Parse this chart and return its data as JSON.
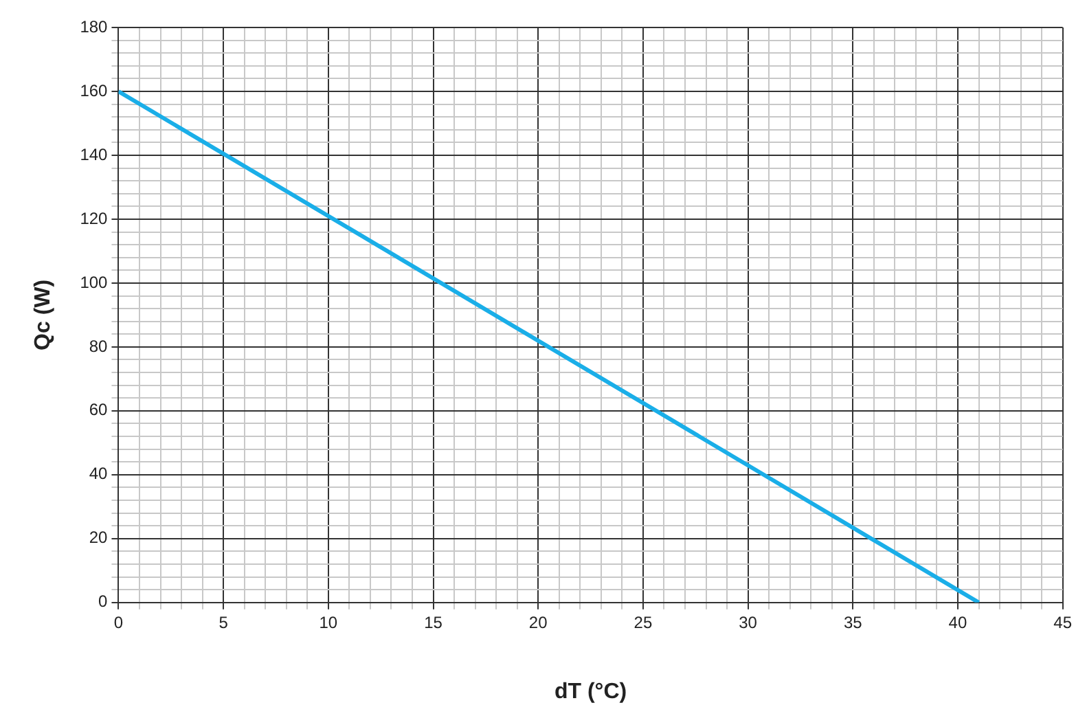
{
  "chart_data": {
    "type": "line",
    "xlabel": "dT (°C)",
    "ylabel": "Qc (W)",
    "x": [
      0,
      41
    ],
    "series": [
      {
        "color": "#1aaee8",
        "values": [
          160,
          0
        ]
      }
    ],
    "xlim": [
      0,
      45
    ],
    "ylim": [
      0,
      180
    ],
    "xticks": [
      0,
      {
        "value": 1,
        "label": null
      },
      {
        "value": 2,
        "label": null
      },
      {
        "value": 3,
        "label": null
      },
      {
        "value": 4,
        "label": null
      },
      5,
      {
        "value": 6,
        "label": null
      },
      {
        "value": 7,
        "label": null
      },
      {
        "value": 8,
        "label": null
      },
      {
        "value": 9,
        "label": null
      },
      10,
      {
        "value": 11,
        "label": null
      },
      {
        "value": 12,
        "label": null
      },
      {
        "value": 13,
        "label": null
      },
      {
        "value": 14,
        "label": null
      },
      15,
      {
        "value": 16,
        "label": null
      },
      {
        "value": 17,
        "label": null
      },
      {
        "value": 18,
        "label": null
      },
      {
        "value": 19,
        "label": null
      },
      20,
      {
        "value": 21,
        "label": null
      },
      {
        "value": 22,
        "label": null
      },
      {
        "value": 23,
        "label": null
      },
      {
        "value": 24,
        "label": null
      },
      25,
      {
        "value": 26,
        "label": null
      },
      {
        "value": 27,
        "label": null
      },
      {
        "value": 28,
        "label": null
      },
      {
        "value": 29,
        "label": null
      },
      30,
      {
        "value": 31,
        "label": null
      },
      {
        "value": 32,
        "label": null
      },
      {
        "value": 33,
        "label": null
      },
      {
        "value": 34,
        "label": null
      },
      35,
      {
        "value": 36,
        "label": null
      },
      {
        "value": 37,
        "label": null
      },
      {
        "value": 38,
        "label": null
      },
      {
        "value": 39,
        "label": null
      },
      40,
      {
        "value": 41,
        "label": null
      },
      {
        "value": 42,
        "label": null
      },
      {
        "value": 43,
        "label": null
      },
      {
        "value": 44,
        "label": null
      },
      45
    ],
    "yticks": [
      0,
      {
        "value": 4,
        "label": null
      },
      {
        "value": 8,
        "label": null
      },
      {
        "value": 12,
        "label": null
      },
      {
        "value": 16,
        "label": null
      },
      20,
      {
        "value": 24,
        "label": null
      },
      {
        "value": 28,
        "label": null
      },
      {
        "value": 32,
        "label": null
      },
      {
        "value": 36,
        "label": null
      },
      40,
      {
        "value": 44,
        "label": null
      },
      {
        "value": 48,
        "label": null
      },
      {
        "value": 52,
        "label": null
      },
      {
        "value": 56,
        "label": null
      },
      60,
      {
        "value": 64,
        "label": null
      },
      {
        "value": 68,
        "label": null
      },
      {
        "value": 72,
        "label": null
      },
      {
        "value": 76,
        "label": null
      },
      80,
      {
        "value": 84,
        "label": null
      },
      {
        "value": 88,
        "label": null
      },
      {
        "value": 92,
        "label": null
      },
      {
        "value": 96,
        "label": null
      },
      100,
      {
        "value": 104,
        "label": null
      },
      {
        "value": 108,
        "label": null
      },
      {
        "value": 112,
        "label": null
      },
      {
        "value": 116,
        "label": null
      },
      120,
      {
        "value": 124,
        "label": null
      },
      {
        "value": 128,
        "label": null
      },
      {
        "value": 132,
        "label": null
      },
      {
        "value": 136,
        "label": null
      },
      140,
      {
        "value": 144,
        "label": null
      },
      {
        "value": 148,
        "label": null
      },
      {
        "value": 152,
        "label": null
      },
      {
        "value": 156,
        "label": null
      },
      160,
      {
        "value": 164,
        "label": null
      },
      {
        "value": 168,
        "label": null
      },
      {
        "value": 172,
        "label": null
      },
      {
        "value": 176,
        "label": null
      },
      180
    ],
    "grid": true,
    "legend": false,
    "marker": "none",
    "line_style": "solid"
  }
}
